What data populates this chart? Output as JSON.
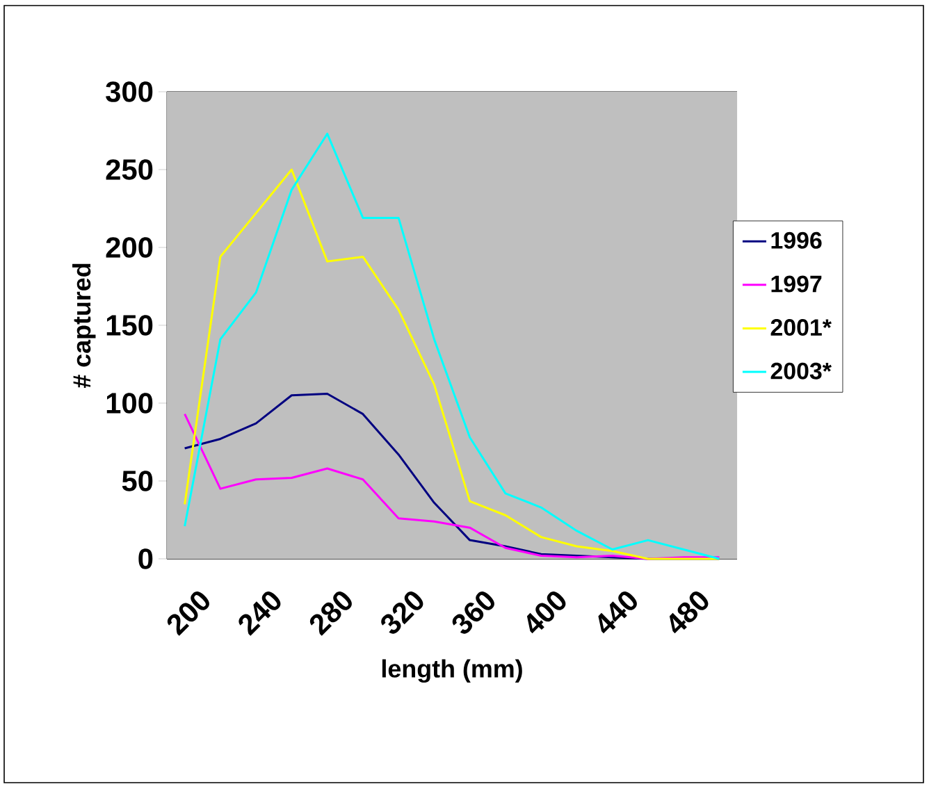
{
  "chart_data": {
    "type": "line",
    "xlabel": "length (mm)",
    "ylabel": "# captured",
    "categories": [
      "200",
      null,
      "240",
      null,
      "280",
      null,
      "320",
      null,
      "360",
      null,
      "400",
      null,
      "440",
      null,
      "480",
      null
    ],
    "series": [
      {
        "name": "1996",
        "color": "#000080",
        "values": [
          71,
          77,
          87,
          105,
          106,
          93,
          67,
          36,
          12,
          8,
          3,
          2,
          1,
          0,
          0,
          0
        ]
      },
      {
        "name": "1997",
        "color": "#ff00ff",
        "values": [
          93,
          45,
          51,
          52,
          58,
          51,
          26,
          24,
          20,
          7,
          2,
          1,
          2,
          0,
          1,
          1
        ]
      },
      {
        "name": "2001*",
        "color": "#ffff00",
        "values": [
          35,
          194,
          222,
          250,
          191,
          194,
          160,
          112,
          37,
          28,
          14,
          8,
          5,
          0,
          0,
          0
        ]
      },
      {
        "name": "2003*",
        "color": "#00ffff",
        "values": [
          21,
          141,
          171,
          237,
          273,
          219,
          219,
          141,
          78,
          42,
          33,
          18,
          6,
          12,
          6,
          0
        ]
      }
    ],
    "ylim": [
      0,
      300
    ],
    "yticks": [
      0,
      50,
      100,
      150,
      200,
      250,
      300
    ],
    "grid": "y",
    "legend": "right",
    "marker": "none",
    "line_style": "solid"
  }
}
